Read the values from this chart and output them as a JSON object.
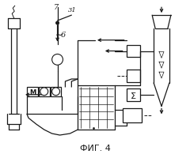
{
  "title": "ФИГ. 4",
  "bg_color": "#ffffff",
  "line_color": "#1a1a1a",
  "label_7": "7",
  "label_31": "31",
  "label_6": "6"
}
